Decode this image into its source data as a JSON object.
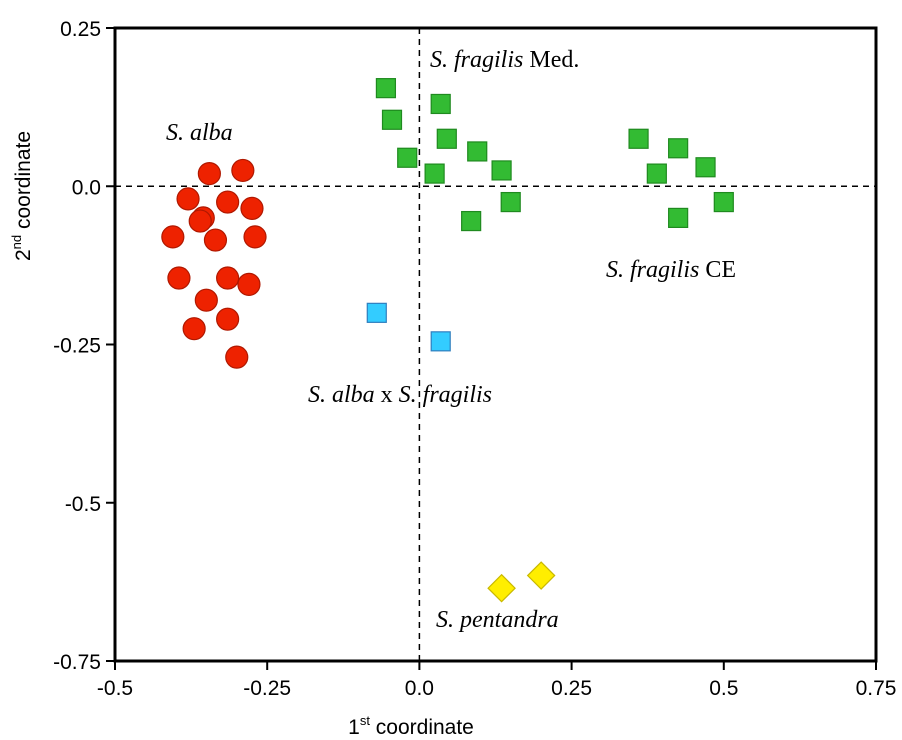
{
  "chart_data": {
    "type": "scatter",
    "xlabel": {
      "base": "1",
      "sup": "st",
      "rest": " coordinate"
    },
    "ylabel": {
      "base": "2",
      "sup": "nd",
      "rest": " coordinate"
    },
    "xlim": [
      -0.5,
      0.75
    ],
    "ylim": [
      -0.75,
      0.25
    ],
    "x_ticks": [
      "-0.5",
      "-0.25",
      "0.0",
      "0.25",
      "0.5",
      "0.75"
    ],
    "y_ticks": [
      "0.25",
      "0.0",
      "-0.25",
      "-0.5",
      "-0.75"
    ],
    "reference_lines": {
      "x": 0,
      "y": 0,
      "style": "dashed"
    },
    "series": [
      {
        "name": "S. alba",
        "marker": "circle",
        "color": "#ee2200",
        "x": [
          -0.345,
          -0.29,
          -0.38,
          -0.355,
          -0.315,
          -0.275,
          -0.405,
          -0.36,
          -0.335,
          -0.27,
          -0.395,
          -0.315,
          -0.28,
          -0.35,
          -0.37,
          -0.315,
          -0.3
        ],
        "y": [
          0.02,
          0.025,
          -0.02,
          -0.05,
          -0.025,
          -0.035,
          -0.08,
          -0.055,
          -0.085,
          -0.08,
          -0.145,
          -0.145,
          -0.155,
          -0.18,
          -0.225,
          -0.21,
          -0.27
        ]
      },
      {
        "name": "S. fragilis Med.",
        "marker": "square",
        "color": "#33bb33",
        "x": [
          -0.055,
          -0.045,
          0.035,
          -0.02,
          0.045,
          0.095,
          0.025,
          0.135,
          0.15,
          0.085
        ],
        "y": [
          0.155,
          0.105,
          0.13,
          0.045,
          0.075,
          0.055,
          0.02,
          0.025,
          -0.025,
          -0.055
        ]
      },
      {
        "name": "S. fragilis CE",
        "marker": "square",
        "color": "#33bb33",
        "x": [
          0.36,
          0.425,
          0.47,
          0.39,
          0.5,
          0.425
        ],
        "y": [
          0.075,
          0.06,
          0.03,
          0.02,
          -0.025,
          -0.05
        ]
      },
      {
        "name": "S. alba x S. fragilis",
        "marker": "square",
        "color": "#33ccff",
        "x": [
          -0.07,
          0.035
        ],
        "y": [
          -0.2,
          -0.245
        ]
      },
      {
        "name": "S. pentandra",
        "marker": "diamond",
        "color": "#ffee00",
        "x": [
          0.135,
          0.2
        ],
        "y": [
          -0.635,
          -0.615
        ]
      }
    ],
    "annotations": {
      "alba": {
        "italic": "S. alba",
        "plain": ""
      },
      "frag_med": {
        "italic": "S. fragilis",
        "plain": " Med."
      },
      "frag_ce": {
        "italic": "S. fragilis",
        "plain": " CE"
      },
      "hybrid": {
        "italic1": "S. alba",
        "plain": " x ",
        "italic2": "S. fragilis"
      },
      "pentandra": {
        "italic": "S. pentandra",
        "plain": ""
      }
    }
  }
}
